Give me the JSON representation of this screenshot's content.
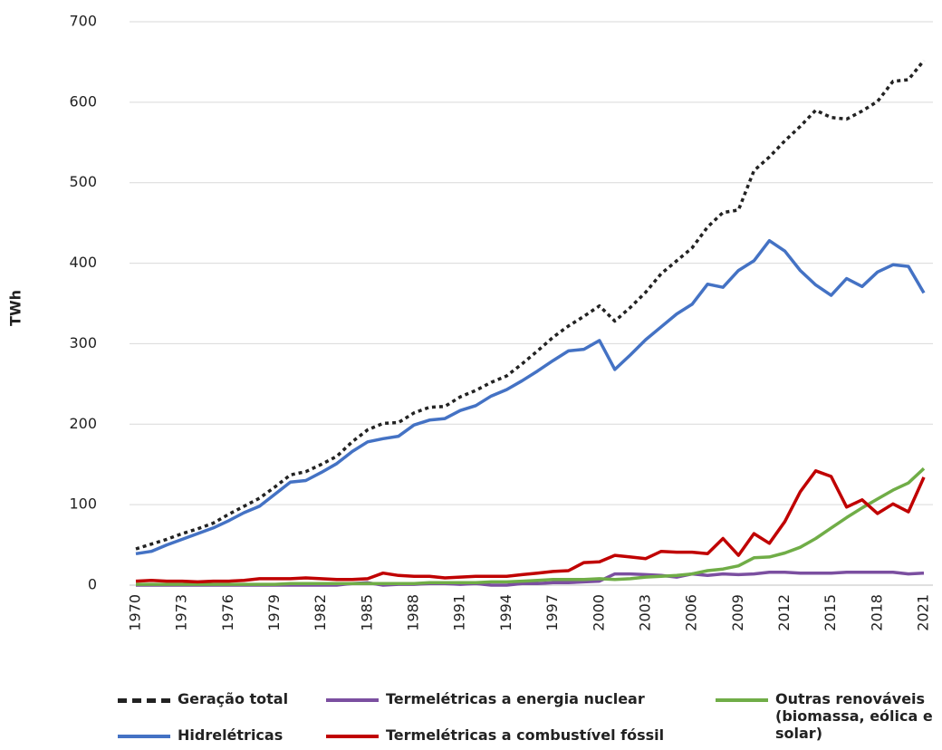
{
  "chart_data": {
    "type": "line",
    "y_label": "TWh",
    "x": [
      1970,
      1971,
      1972,
      1973,
      1974,
      1975,
      1976,
      1977,
      1978,
      1979,
      1980,
      1981,
      1982,
      1983,
      1984,
      1985,
      1986,
      1987,
      1988,
      1989,
      1990,
      1991,
      1992,
      1993,
      1994,
      1995,
      1996,
      1997,
      1998,
      1999,
      2000,
      2001,
      2002,
      2003,
      2004,
      2005,
      2006,
      2007,
      2008,
      2009,
      2010,
      2011,
      2012,
      2013,
      2014,
      2015,
      2016,
      2017,
      2018,
      2019,
      2020,
      2021
    ],
    "xlim": [
      1970,
      2021
    ],
    "xticks": [
      1970,
      1973,
      1976,
      1979,
      1982,
      1985,
      1988,
      1991,
      1994,
      1997,
      2000,
      2003,
      2006,
      2009,
      2012,
      2015,
      2018,
      2021
    ],
    "ylim": [
      0,
      700
    ],
    "yticks": [
      0,
      100,
      200,
      300,
      400,
      500,
      600,
      700
    ],
    "grid": true,
    "series": [
      {
        "name": "Geração total",
        "color": "#222222",
        "dashed": true,
        "values": [
          45,
          51,
          57,
          64,
          70,
          77,
          88,
          98,
          108,
          122,
          137,
          141,
          150,
          160,
          178,
          193,
          201,
          202,
          214,
          221,
          222,
          234,
          242,
          252,
          260,
          275,
          291,
          308,
          322,
          334,
          347,
          328,
          345,
          364,
          387,
          403,
          419,
          445,
          463,
          466,
          515,
          532,
          552,
          570,
          590,
          581,
          579,
          589,
          601,
          626,
          628,
          652
        ]
      },
      {
        "name": "Hidrelétricas",
        "color": "#4472c4",
        "values": [
          39,
          42,
          50,
          57,
          64,
          71,
          80,
          90,
          98,
          113,
          128,
          130,
          140,
          151,
          166,
          178,
          182,
          185,
          199,
          205,
          207,
          217,
          223,
          235,
          243,
          254,
          266,
          279,
          291,
          293,
          304,
          268,
          286,
          305,
          321,
          337,
          349,
          374,
          370,
          391,
          403,
          428,
          415,
          391,
          373,
          360,
          381,
          371,
          389,
          398,
          396,
          363
        ]
      },
      {
        "name": "Termelétricas a energia nuclear",
        "color": "#7b4fa0",
        "values": [
          0,
          0,
          0,
          0,
          0,
          0,
          0,
          0,
          0,
          0,
          0,
          0,
          0,
          0,
          2,
          3,
          0,
          1,
          1,
          2,
          2,
          1,
          2,
          0,
          0,
          2,
          2,
          3,
          3,
          4,
          5,
          14,
          14,
          13,
          12,
          10,
          14,
          12,
          14,
          13,
          14,
          16,
          16,
          15,
          15,
          15,
          16,
          16,
          16,
          16,
          14,
          15
        ]
      },
      {
        "name": "Termelétricas a combustível fóssil",
        "color": "#c00000",
        "values": [
          5,
          6,
          5,
          5,
          4,
          5,
          5,
          6,
          8,
          8,
          8,
          9,
          8,
          7,
          7,
          8,
          15,
          12,
          11,
          11,
          9,
          10,
          11,
          11,
          11,
          13,
          15,
          17,
          18,
          28,
          29,
          37,
          35,
          33,
          42,
          41,
          41,
          39,
          58,
          37,
          64,
          52,
          79,
          116,
          142,
          135,
          97,
          106,
          89,
          101,
          91,
          134
        ]
      },
      {
        "name": "Outras renováveis (biomassa, eólica e solar)",
        "color": "#70ad47",
        "values": [
          1,
          1,
          1,
          1,
          1,
          1,
          1,
          1,
          1,
          1,
          2,
          2,
          2,
          2,
          2,
          2,
          2,
          2,
          2,
          3,
          3,
          3,
          3,
          4,
          4,
          5,
          6,
          7,
          7,
          7,
          8,
          7,
          8,
          10,
          11,
          12,
          14,
          18,
          20,
          24,
          34,
          35,
          40,
          47,
          58,
          71,
          84,
          96,
          107,
          118,
          127,
          145
        ]
      }
    ]
  }
}
